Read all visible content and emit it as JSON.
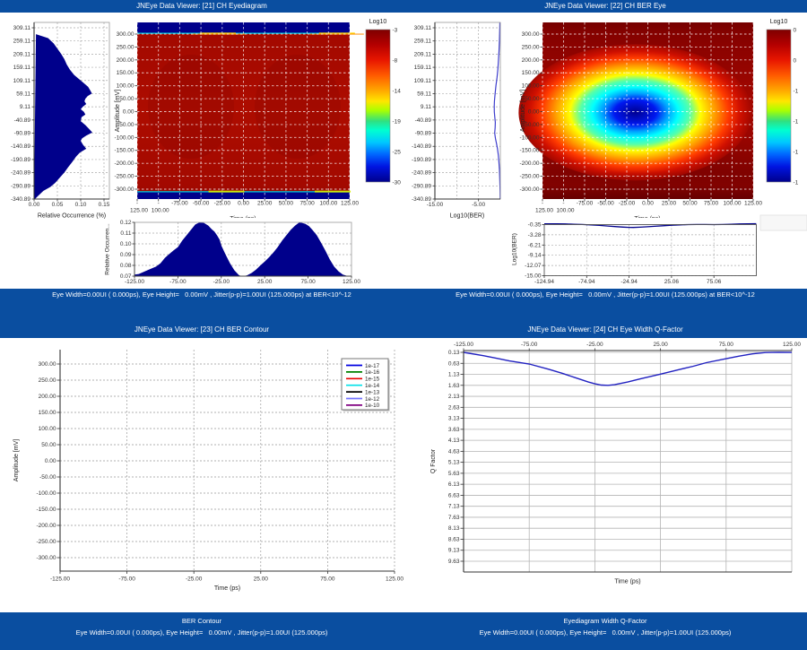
{
  "colors": {
    "titlebar_blue": "#0a4ea0",
    "band_blue": "#0a4ea0",
    "histogram_navy": "#00008b",
    "heat_base_red": "#a80b00",
    "heat_dark_maroon": "#7f0000",
    "curve_navy": "#00008b",
    "curve_blue": "#3d3dcc",
    "grid_grey": "#999999",
    "grid_white": "#ffffff"
  },
  "windows": [
    {
      "id": 21,
      "title": "JNEye Data Viewer: [21] CH Eyediagram",
      "status": "Eye Width=0.00UI ( 0.000ps), Eye Height=   0.00mV , Jitter(p-p)=1.00UI (125.000ps) at BER<10^-12"
    },
    {
      "id": 22,
      "title": "JNEye Data Viewer: [22] CH BER Eye",
      "status": "Eye Width=0.00UI ( 0.000ps), Eye Height=   0.00mV , Jitter(p-p)=1.00UI (125.000ps) at BER<10^-12"
    },
    {
      "id": 23,
      "title": "JNEye Data Viewer: [23] CH BER Contour",
      "footer_title": "BER Contour",
      "footer_status": "Eye Width=0.00UI ( 0.000ps), Eye Height=   0.00mV , Jitter(p-p)=1.00UI (125.000ps)"
    },
    {
      "id": 24,
      "title": "JNEye Data Viewer: [24] CH Eye Width Q-Factor",
      "footer_title": "Eyediagram Width Q-Factor",
      "footer_status": "Eye Width=0.00UI ( 0.000ps), Eye Height=   0.00mV , Jitter(p-p)=1.00UI (125.000ps)"
    }
  ],
  "chart_data": [
    {
      "id": "p21_amplitude_histogram",
      "type": "area",
      "orientation": "horizontal",
      "xlabel": "Relative Occurrence (%)",
      "ylabel": "Amplitude [mV]",
      "x_ticks": [
        "0.00",
        "0.05",
        "0.10",
        "0.15"
      ],
      "y_ticks": [
        "309.11",
        "259.11",
        "209.11",
        "159.11",
        "109.11",
        "59.11",
        "9.11",
        "-40.89",
        "-90.89",
        "-140.89",
        "-190.89",
        "-240.89",
        "-290.89",
        "-340.89"
      ],
      "xlim": [
        0,
        0.1615
      ],
      "ylim": [
        -341,
        330
      ],
      "fill": "#00008b",
      "points": [
        [
          285,
          0.004
        ],
        [
          270,
          0.03
        ],
        [
          250,
          0.042
        ],
        [
          230,
          0.05
        ],
        [
          210,
          0.058
        ],
        [
          190,
          0.065
        ],
        [
          170,
          0.07
        ],
        [
          150,
          0.077
        ],
        [
          130,
          0.086
        ],
        [
          115,
          0.096
        ],
        [
          100,
          0.106
        ],
        [
          85,
          0.116
        ],
        [
          70,
          0.121
        ],
        [
          60,
          0.124
        ],
        [
          50,
          0.115
        ],
        [
          40,
          0.11
        ],
        [
          30,
          0.108
        ],
        [
          20,
          0.112
        ],
        [
          10,
          0.105
        ],
        [
          0,
          0.1
        ],
        [
          -10,
          0.107
        ],
        [
          -20,
          0.11
        ],
        [
          -30,
          0.102
        ],
        [
          -45,
          0.1
        ],
        [
          -60,
          0.11
        ],
        [
          -75,
          0.118
        ],
        [
          -88,
          0.125
        ],
        [
          -100,
          0.112
        ],
        [
          -110,
          0.103
        ],
        [
          -120,
          0.1
        ],
        [
          -135,
          0.105
        ],
        [
          -150,
          0.112
        ],
        [
          -165,
          0.098
        ],
        [
          -180,
          0.09
        ],
        [
          -200,
          0.082
        ],
        [
          -220,
          0.073
        ],
        [
          -240,
          0.065
        ],
        [
          -260,
          0.055
        ],
        [
          -280,
          0.045
        ],
        [
          -295,
          0.035
        ],
        [
          -310,
          0.02
        ],
        [
          -330,
          0.008
        ],
        [
          -341,
          0.002
        ]
      ]
    },
    {
      "id": "p21_eye_heatmap",
      "type": "heatmap",
      "xlabel": "Time (ps)",
      "ylabel": "Amplitude [mV]",
      "x_ticks": [
        "-125.00",
        "-100.00",
        "-75.00",
        "-50.00",
        "-25.00",
        "0.00",
        "25.00",
        "50.00",
        "75.00",
        "100.00",
        "125.00"
      ],
      "y_ticks": [
        "300.00",
        "250.00",
        "200.00",
        "150.00",
        "100.00",
        "50.00",
        "0.00",
        "-50.00",
        "-100.00",
        "-150.00",
        "-200.00",
        "-250.00",
        "-300.00"
      ],
      "xlim": [
        -125,
        125
      ],
      "ylim": [
        -338,
        345
      ],
      "colorbar": {
        "title": "Log10",
        "labels": [
          "-3",
          "-8",
          "-14",
          "-19",
          "-25",
          "-30"
        ]
      },
      "rail_top_mv": 305,
      "rail_bottom_mv": -312,
      "hotspots_top_ps": [
        -30,
        110
      ],
      "hotspots_bottom_ps": [
        -20,
        105
      ]
    },
    {
      "id": "p21_time_histogram",
      "type": "area",
      "xlabel": "Time (ps)",
      "ylabel": "Relative Occurren...",
      "x_ticks": [
        "-125.00",
        "-75.00",
        "-25.00",
        "25.00",
        "75.00",
        "125.00"
      ],
      "y_ticks": [
        "0.12",
        "0.11",
        "0.10",
        "0.09",
        "0.08",
        "0.07"
      ],
      "xlim": [
        -125,
        125
      ],
      "ylim": [
        0.07,
        0.12
      ],
      "fill": "#00008b",
      "points": [
        [
          -125,
          0.0715
        ],
        [
          -120,
          0.072
        ],
        [
          -110,
          0.0755
        ],
        [
          -100,
          0.079
        ],
        [
          -95,
          0.082
        ],
        [
          -90,
          0.087
        ],
        [
          -85,
          0.0905
        ],
        [
          -80,
          0.094
        ],
        [
          -75,
          0.097
        ],
        [
          -70,
          0.103
        ],
        [
          -65,
          0.108
        ],
        [
          -60,
          0.113
        ],
        [
          -55,
          0.118
        ],
        [
          -50,
          0.12
        ],
        [
          -45,
          0.1195
        ],
        [
          -40,
          0.117
        ],
        [
          -36,
          0.1135
        ],
        [
          -33,
          0.1115
        ],
        [
          -30,
          0.108
        ],
        [
          -27,
          0.104
        ],
        [
          -25,
          0.0985
        ],
        [
          -20,
          0.09
        ],
        [
          -15,
          0.082
        ],
        [
          -10,
          0.0755
        ],
        [
          -5,
          0.0712
        ],
        [
          -2,
          0.0698
        ],
        [
          2,
          0.0702
        ],
        [
          5,
          0.0708
        ],
        [
          10,
          0.073
        ],
        [
          15,
          0.076
        ],
        [
          20,
          0.08
        ],
        [
          25,
          0.0835
        ],
        [
          30,
          0.0875
        ],
        [
          35,
          0.092
        ],
        [
          40,
          0.097
        ],
        [
          45,
          0.103
        ],
        [
          50,
          0.108
        ],
        [
          55,
          0.113
        ],
        [
          60,
          0.117
        ],
        [
          65,
          0.12
        ],
        [
          68,
          0.1195
        ],
        [
          72,
          0.1185
        ],
        [
          76,
          0.1165
        ],
        [
          80,
          0.113
        ],
        [
          85,
          0.108
        ],
        [
          90,
          0.101
        ],
        [
          95,
          0.0935
        ],
        [
          100,
          0.0855
        ],
        [
          105,
          0.079
        ],
        [
          110,
          0.0745
        ],
        [
          115,
          0.0715
        ],
        [
          120,
          0.0702
        ],
        [
          125,
          0.0698
        ]
      ]
    },
    {
      "id": "p22_ber_profile",
      "type": "line",
      "xlabel": "Log10(BER)",
      "x_ticks": [
        "-15.00",
        "-5.00"
      ],
      "xlim": [
        -15,
        0
      ],
      "color": "#3d3dcc",
      "points": [
        [
          330,
          -0.1
        ],
        [
          300,
          -0.15
        ],
        [
          260,
          -0.2
        ],
        [
          220,
          -0.3
        ],
        [
          180,
          -0.45
        ],
        [
          150,
          -0.58
        ],
        [
          120,
          -0.75
        ],
        [
          90,
          -1.0
        ],
        [
          60,
          -1.2
        ],
        [
          30,
          -1.35
        ],
        [
          10,
          -1.4
        ],
        [
          -10,
          -1.38
        ],
        [
          -30,
          -1.28
        ],
        [
          -50,
          -1.15
        ],
        [
          -70,
          -1.2
        ],
        [
          -90,
          -1.3
        ],
        [
          -110,
          -1.12
        ],
        [
          -130,
          -0.88
        ],
        [
          -150,
          -0.66
        ],
        [
          -175,
          -0.46
        ],
        [
          -200,
          -0.32
        ],
        [
          -230,
          -0.2
        ],
        [
          -270,
          -0.12
        ],
        [
          -310,
          -0.07
        ],
        [
          -341,
          -0.05
        ]
      ]
    },
    {
      "id": "p22_ber_eye_heatmap",
      "type": "heatmap",
      "xlabel": "Time (ps)",
      "ylabel": "Amplitude [mV]",
      "x_ticks": [
        "-125.00",
        "-100.00",
        "-75.00",
        "-50.00",
        "-25.00",
        "0.00",
        "25.00",
        "50.00",
        "75.00",
        "100.00",
        "125.00"
      ],
      "y_ticks": [
        "300.00",
        "250.00",
        "200.00",
        "150.00",
        "100.00",
        "50.00",
        "0.00",
        "-50.00",
        "-100.00",
        "-150.00",
        "-200.00",
        "-250.00",
        "-300.00"
      ],
      "xlim": [
        -125,
        125
      ],
      "ylim": [
        -338,
        345
      ],
      "colorbar": {
        "title": "Log10",
        "labels": [
          "0",
          "0",
          "-1",
          "-1",
          "-1",
          "-1"
        ]
      },
      "blob_center_ps": -15,
      "blob_center_mv": -3
    },
    {
      "id": "p22_ber_time_curve",
      "type": "line",
      "xlabel": "Time (ps)",
      "ylabel": "Log10(BER)",
      "x_ticks": [
        "-124.94",
        "-74.94",
        "-24.94",
        "25.06",
        "75.06"
      ],
      "y_ticks": [
        "-0.35",
        "-3.28",
        "-6.21",
        "-9.14",
        "-12.07",
        "-15.00"
      ],
      "xlim": [
        -124.94,
        125.06
      ],
      "ylim": [
        -15.0,
        -0.35
      ],
      "color": "#00008b",
      "points": [
        [
          -124.94,
          -0.12
        ],
        [
          -110,
          -0.15
        ],
        [
          -100,
          -0.18
        ],
        [
          -90,
          -0.25
        ],
        [
          -80,
          -0.33
        ],
        [
          -70,
          -0.45
        ],
        [
          -60,
          -0.58
        ],
        [
          -50,
          -0.75
        ],
        [
          -40,
          -0.95
        ],
        [
          -32,
          -1.08
        ],
        [
          -25,
          -1.15
        ],
        [
          -20,
          -1.17
        ],
        [
          -12,
          -1.1
        ],
        [
          -5,
          -1.0
        ],
        [
          5,
          -0.85
        ],
        [
          15,
          -0.68
        ],
        [
          25,
          -0.52
        ],
        [
          35,
          -0.42
        ],
        [
          45,
          -0.36
        ],
        [
          55,
          -0.33
        ],
        [
          65,
          -0.33
        ],
        [
          75,
          -0.36
        ],
        [
          85,
          -0.33
        ],
        [
          95,
          -0.25
        ],
        [
          105,
          -0.18
        ],
        [
          115,
          -0.13
        ],
        [
          125,
          -0.1
        ]
      ]
    },
    {
      "id": "p23_ber_contour",
      "type": "line",
      "xlabel": "Time (ps)",
      "ylabel": "Amplitude [mV]",
      "x_ticks": [
        "-125.00",
        "-75.00",
        "-25.00",
        "25.00",
        "75.00",
        "125.00"
      ],
      "y_ticks": [
        "300.00",
        "250.00",
        "200.00",
        "150.00",
        "100.00",
        "50.00",
        "0.00",
        "-50.00",
        "-100.00",
        "-150.00",
        "-200.00",
        "-250.00",
        "-300.00"
      ],
      "xlim": [
        -125,
        125
      ],
      "ylim": [
        -341,
        344
      ],
      "legend": [
        {
          "label": "1e-17",
          "color": "#0000e0"
        },
        {
          "label": "1e-16",
          "color": "#008000"
        },
        {
          "label": "1e-15",
          "color": "#e80000"
        },
        {
          "label": "1e-14",
          "color": "#00e0e8"
        },
        {
          "label": "1e-13",
          "color": "#000000"
        },
        {
          "label": "1e-12",
          "color": "#7373ff"
        },
        {
          "label": "1e-10",
          "color": "#800080"
        }
      ],
      "series": []
    },
    {
      "id": "p24_q_factor",
      "type": "line",
      "xlabel": "Time (ps)",
      "ylabel": "Q Factor",
      "x_ticks": [
        "-125.00",
        "-75.00",
        "-25.00",
        "25.00",
        "75.00",
        "125.00"
      ],
      "y_ticks": [
        "0.13",
        "0.63",
        "1.13",
        "1.63",
        "2.13",
        "2.63",
        "3.13",
        "3.63",
        "4.13",
        "4.63",
        "5.13",
        "5.63",
        "6.13",
        "6.63",
        "7.13",
        "7.63",
        "8.13",
        "8.63",
        "9.13",
        "9.63"
      ],
      "xlim": [
        -125,
        125
      ],
      "ylim": [
        0.13,
        9.63
      ],
      "y_inverted": true,
      "color": "#2020c0",
      "points": [
        [
          -125,
          0.13
        ],
        [
          -110,
          0.28
        ],
        [
          -100,
          0.4
        ],
        [
          -90,
          0.52
        ],
        [
          -75,
          0.66
        ],
        [
          -60,
          0.9
        ],
        [
          -50,
          1.08
        ],
        [
          -40,
          1.28
        ],
        [
          -30,
          1.48
        ],
        [
          -25,
          1.56
        ],
        [
          -20,
          1.62
        ],
        [
          -15,
          1.63
        ],
        [
          -10,
          1.6
        ],
        [
          0,
          1.48
        ],
        [
          10,
          1.33
        ],
        [
          25,
          1.12
        ],
        [
          40,
          0.9
        ],
        [
          50,
          0.76
        ],
        [
          60,
          0.6
        ],
        [
          75,
          0.42
        ],
        [
          85,
          0.3
        ],
        [
          95,
          0.2
        ],
        [
          105,
          0.14
        ],
        [
          115,
          0.125
        ],
        [
          125,
          0.135
        ]
      ]
    }
  ]
}
